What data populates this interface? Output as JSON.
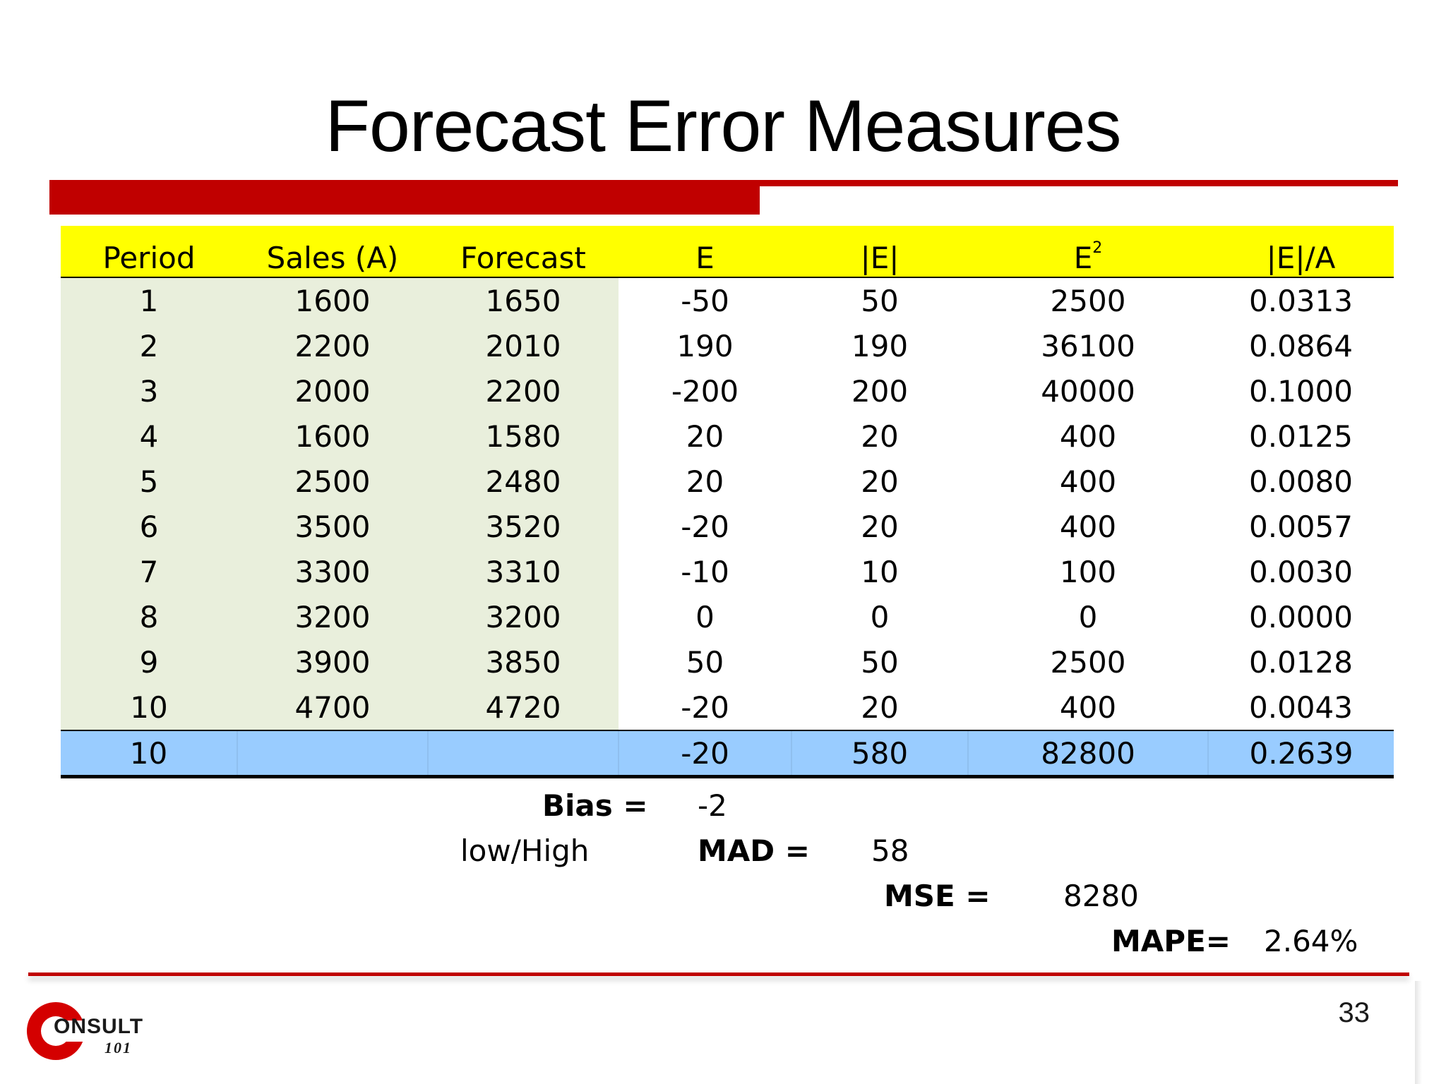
{
  "slide": {
    "title": "Forecast Error Measures",
    "page_number": "33",
    "logo_text": "ONSULT",
    "logo_number": "101"
  },
  "table": {
    "headers": [
      "Period",
      "Sales (A)",
      "Forecast",
      "E",
      "|E|",
      "E",
      "|E|/A"
    ],
    "header_superscript": "2",
    "rows": [
      [
        "1",
        "1600",
        "1650",
        "-50",
        "50",
        "2500",
        "0.0313"
      ],
      [
        "2",
        "2200",
        "2010",
        "190",
        "190",
        "36100",
        "0.0864"
      ],
      [
        "3",
        "2000",
        "2200",
        "-200",
        "200",
        "40000",
        "0.1000"
      ],
      [
        "4",
        "1600",
        "1580",
        "20",
        "20",
        "400",
        "0.0125"
      ],
      [
        "5",
        "2500",
        "2480",
        "20",
        "20",
        "400",
        "0.0080"
      ],
      [
        "6",
        "3500",
        "3520",
        "-20",
        "20",
        "400",
        "0.0057"
      ],
      [
        "7",
        "3300",
        "3310",
        "-10",
        "10",
        "100",
        "0.0030"
      ],
      [
        "8",
        "3200",
        "3200",
        "0",
        "0",
        "0",
        "0.0000"
      ],
      [
        "9",
        "3900",
        "3850",
        "50",
        "50",
        "2500",
        "0.0128"
      ],
      [
        "10",
        "4700",
        "4720",
        "-20",
        "20",
        "400",
        "0.0043"
      ]
    ],
    "totals": [
      "10",
      "",
      "",
      "-20",
      "580",
      "82800",
      "0.2639"
    ]
  },
  "measures": {
    "bias_label": "Bias =",
    "bias_value": "-2",
    "low_high": "low/High",
    "mad_label": "MAD =",
    "mad_value": "58",
    "mse_label": "MSE =",
    "mse_value": "8280",
    "mape_label": "MAPE=",
    "mape_value": "2.64%"
  },
  "colors": {
    "accent_red": "#c00000",
    "header_yellow": "#ffff00",
    "input_green": "#e9efdc",
    "total_blue": "#99ccff"
  }
}
